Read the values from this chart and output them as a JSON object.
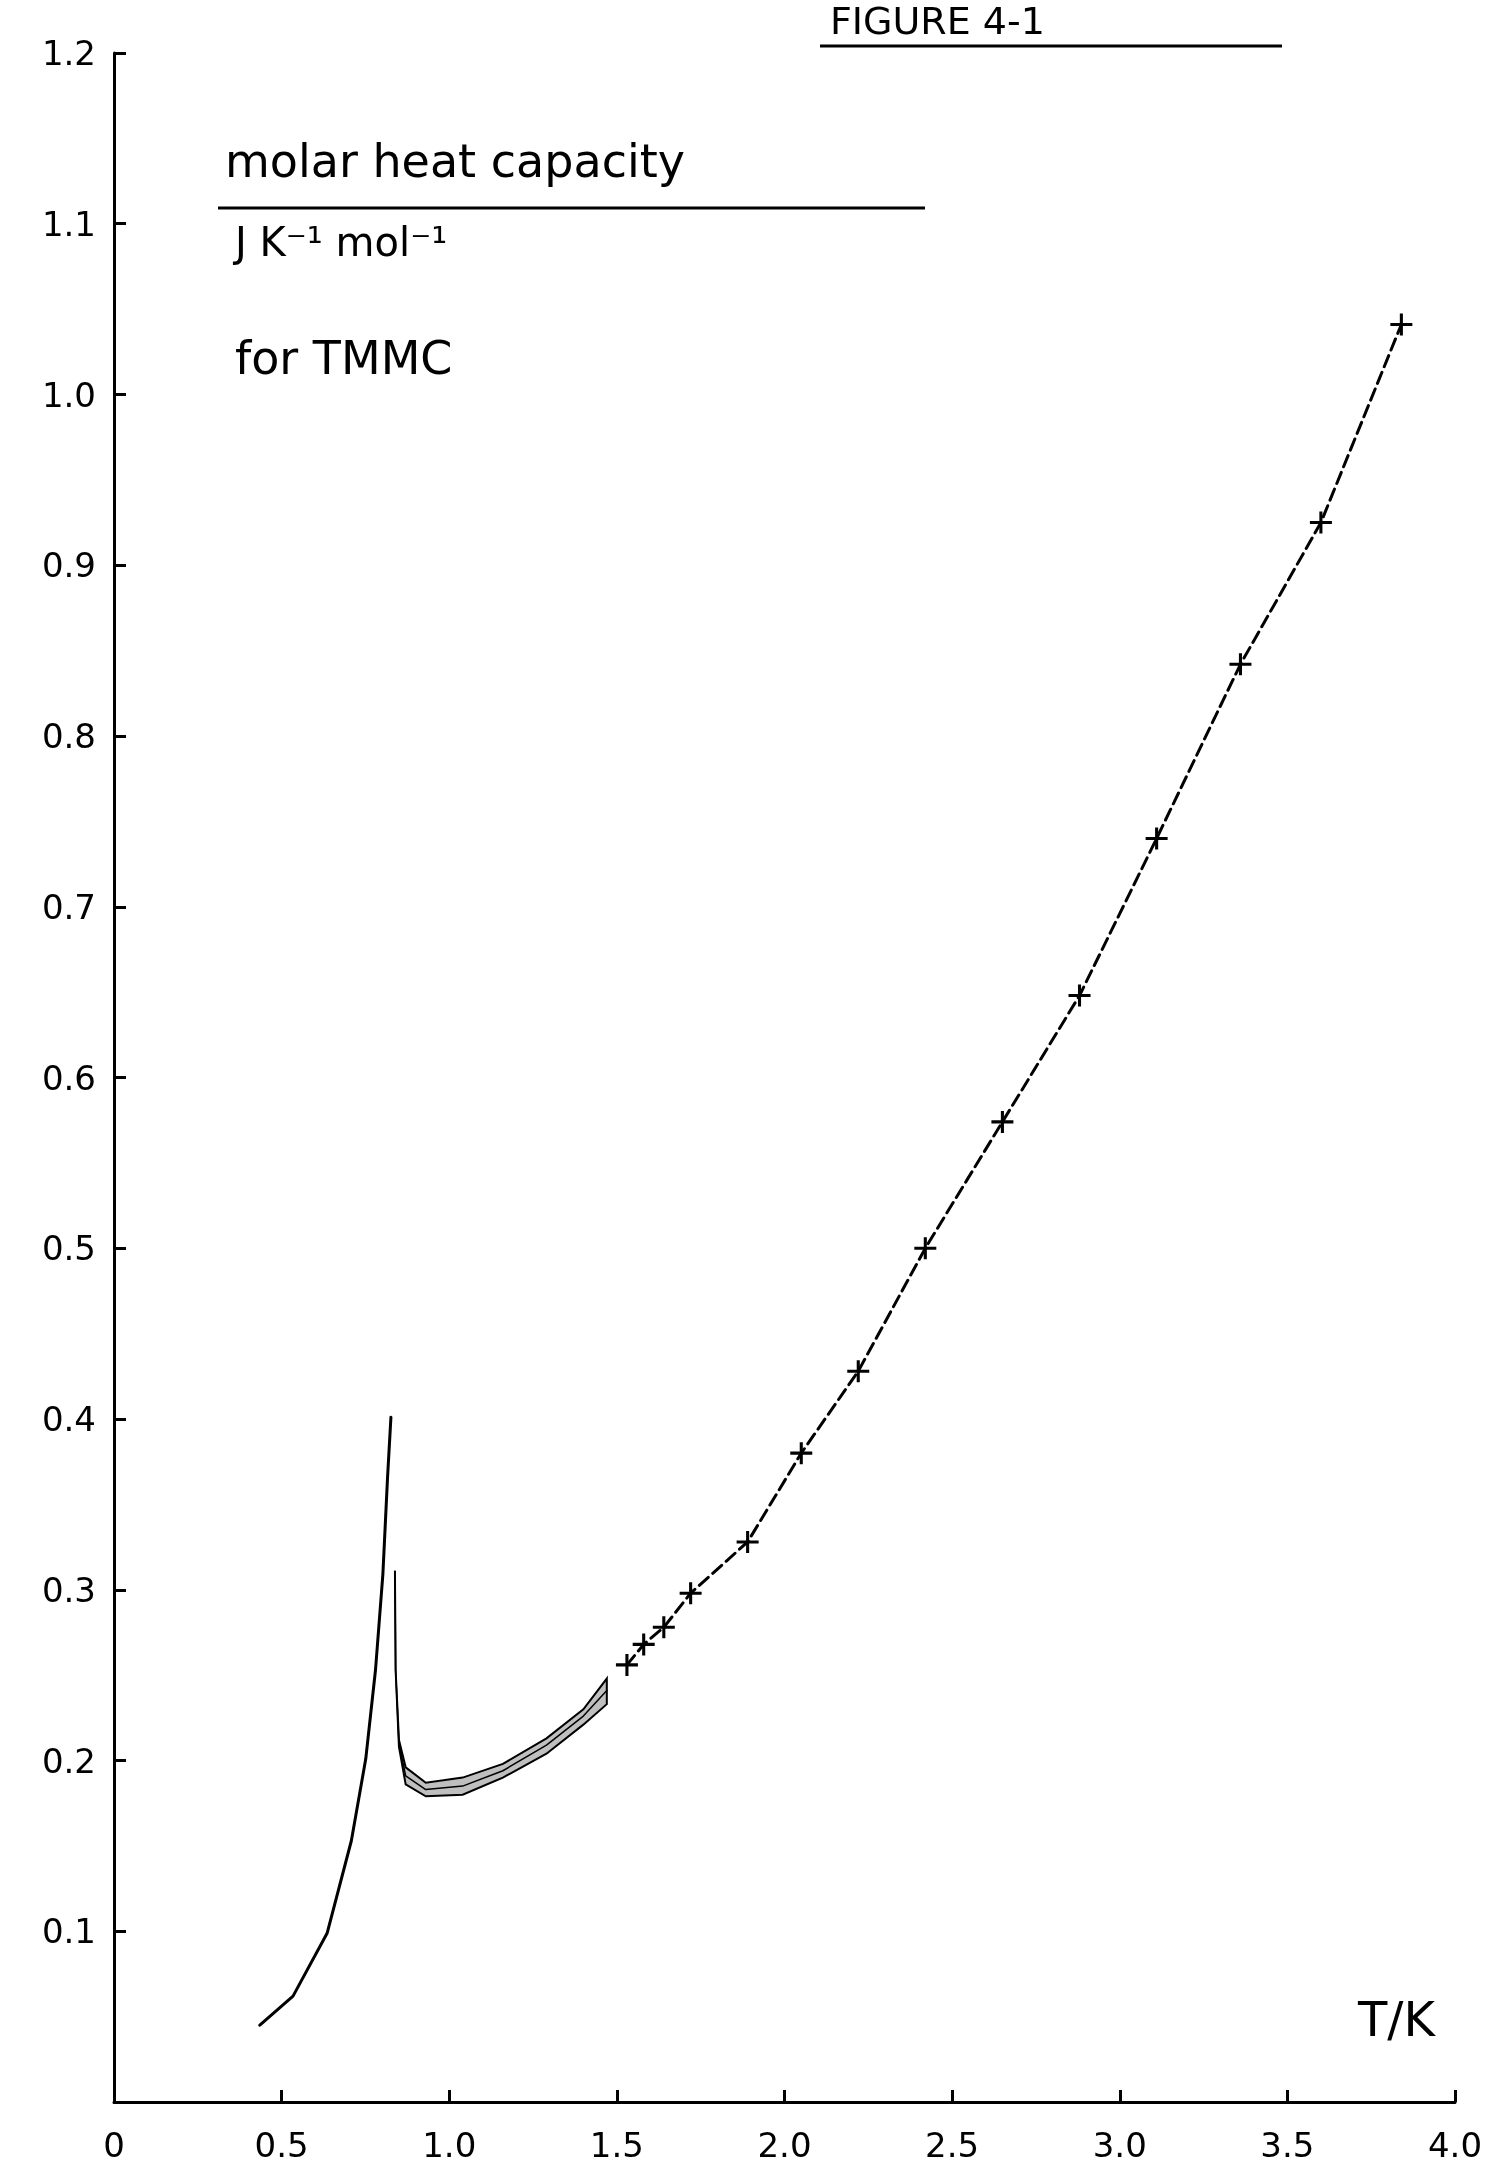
{
  "chart_data": {
    "type": "line",
    "title": "FIGURE 4-1",
    "xlabel": "T/K",
    "ylabel": "molar heat capacity",
    "annotations": [
      "J K⁻¹ mol⁻¹",
      "for TMMC"
    ],
    "xlim": [
      0,
      4.0
    ],
    "ylim": [
      0,
      1.2
    ],
    "xticks": [
      0,
      0.5,
      {
        "value": 1,
        "label": "1.0"
      },
      1.5,
      {
        "value": 2,
        "label": "2.0"
      },
      2.5,
      {
        "value": 3,
        "label": "3.0"
      },
      3.5,
      {
        "value": 4,
        "label": "4.0"
      }
    ],
    "yticks": [
      0.1,
      0.2,
      0.3,
      0.4,
      0.5,
      0.6,
      0.7,
      0.8,
      0.9,
      {
        "value": 1,
        "label": "1.0"
      },
      1.1,
      1.2
    ],
    "series": [
      {
        "color": "#000000",
        "marker": "none",
        "line_style": "solid",
        "x": [
          0.435,
          0.534,
          0.636,
          0.708,
          0.751,
          0.78,
          0.802,
          0.816,
          0.826
        ],
        "values": [
          0.045,
          0.062,
          0.099,
          0.153,
          0.201,
          0.253,
          0.309,
          0.366,
          0.401
        ]
      },
      {
        "color": "#000000",
        "marker": "none",
        "line_style": "solid",
        "x": [
          0.838,
          0.84,
          0.85,
          0.87,
          0.93,
          1.04,
          1.16,
          1.29,
          1.4,
          1.47
        ],
        "values": [
          0.311,
          0.253,
          0.21,
          0.191,
          0.183,
          0.185,
          0.194,
          0.209,
          0.226,
          0.241
        ],
        "lower": [
          0.311,
          0.253,
          0.208,
          0.186,
          0.179,
          0.18,
          0.19,
          0.204,
          0.221,
          0.233
        ],
        "upper": [
          0.311,
          0.253,
          0.212,
          0.196,
          0.187,
          0.19,
          0.198,
          0.213,
          0.23,
          0.248
        ]
      },
      {
        "color": "#000000",
        "marker": "cross",
        "line_style": "dashed",
        "x": [
          1.53,
          1.58,
          1.64,
          1.72,
          1.89,
          2.05,
          2.22,
          2.42,
          2.65,
          2.88,
          3.11,
          3.36,
          3.6,
          3.84
        ],
        "values": [
          0.256,
          0.268,
          0.278,
          0.298,
          0.328,
          0.38,
          0.428,
          0.5,
          0.574,
          0.648,
          0.74,
          0.842,
          0.925,
          1.041
        ]
      }
    ]
  }
}
